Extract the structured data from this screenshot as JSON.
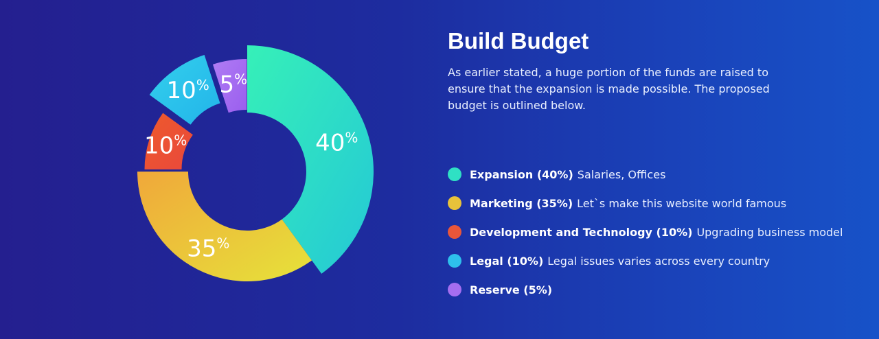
{
  "header": {
    "title": "Build Budget",
    "description": "As earlier stated, a huge portion of the funds are raised to ensure that the expansion is made possible. The proposed budget is outlined below."
  },
  "legend": [
    {
      "name": "Expansion (40%)",
      "desc": "Salaries, Offices",
      "color": "#2fe0c4"
    },
    {
      "name": "Marketing (35%)",
      "desc": "Let`s make this website world famous",
      "color": "#e8c23a"
    },
    {
      "name": "Development and Technology (10%)",
      "desc": "Upgrading business model",
      "color": "#e9563a"
    },
    {
      "name": "Legal (10%)",
      "desc": "Legal issues varies across every country",
      "color": "#2ec0ec"
    },
    {
      "name": "Reserve (5%)",
      "desc": "",
      "color": "#a56ef0"
    }
  ],
  "chart_data": {
    "type": "pie",
    "donut": true,
    "categories": [
      "Expansion",
      "Marketing",
      "Development and Technology",
      "Legal",
      "Reserve"
    ],
    "values": [
      40,
      35,
      10,
      10,
      5
    ],
    "data_labels": [
      "40",
      "35",
      "10",
      "10",
      "5"
    ],
    "label_suffix": "%",
    "colors": {
      "Expansion": [
        "#36f0b8",
        "#24c8d6"
      ],
      "Marketing": [
        "#f0a83a",
        "#e6e23a"
      ],
      "Development and Technology": [
        "#ee5a2c",
        "#e9483c"
      ],
      "Legal": [
        "#34d0ec",
        "#22b4ea"
      ],
      "Reserve": [
        "#b07cf4",
        "#9a5eee"
      ]
    },
    "title": ""
  }
}
